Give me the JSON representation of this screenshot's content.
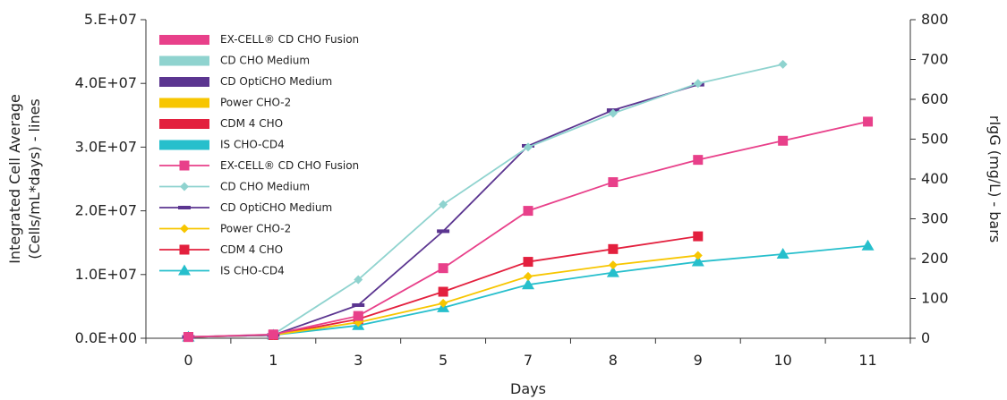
{
  "chart_data": {
    "type": "line",
    "categories": [
      "0",
      "1",
      "3",
      "5",
      "7",
      "8",
      "9",
      "10",
      "11"
    ],
    "xlabel": "Days",
    "ylabel_left_line1": "Integrated Cell Average",
    "ylabel_left_line2": "(Cells/mL*days) - lines",
    "ylabel_right": "rIgG (mg/L) - bars",
    "ylim_left": [
      0,
      50000000
    ],
    "ylim_right": [
      0,
      800
    ],
    "yticks_left": [
      "0.0E+00",
      "1.0E+07",
      "2.0E+07",
      "3.0E+07",
      "4.0E+07",
      "5.E+07"
    ],
    "yticks_right": [
      "0",
      "100",
      "200",
      "300",
      "400",
      "500",
      "600",
      "700",
      "800"
    ],
    "grid": false,
    "legend_position": "top-left",
    "bar_series": [
      {
        "name": "EX-CELL® CD CHO Fusion",
        "color": "#e8408a",
        "values": []
      },
      {
        "name": "CD CHO Medium",
        "color": "#8fd3cf",
        "values": []
      },
      {
        "name": "CD OptiCHO Medium",
        "color": "#5b3590",
        "values": []
      },
      {
        "name": "Power CHO-2",
        "color": "#f7c600",
        "values": []
      },
      {
        "name": "CDM 4 CHO",
        "color": "#e3203e",
        "values": []
      },
      {
        "name": "IS CHO-CD4",
        "color": "#26bfcc",
        "values": []
      }
    ],
    "series": [
      {
        "name": "EX-CELL® CD CHO Fusion",
        "color": "#e8408a",
        "marker": "square",
        "values": [
          200000,
          600000,
          3500000,
          11000000,
          20000000,
          24500000,
          28000000,
          31000000,
          34000000
        ]
      },
      {
        "name": "CD CHO Medium",
        "color": "#8fd3cf",
        "marker": "diamond",
        "values": [
          200000,
          600000,
          9200000,
          21000000,
          30000000,
          35300000,
          40000000,
          43000000,
          null
        ]
      },
      {
        "name": "CD OptiCHO Medium",
        "color": "#5b3590",
        "marker": "dash",
        "values": [
          200000,
          500000,
          5200000,
          16800000,
          30200000,
          35800000,
          39800000,
          null,
          null
        ]
      },
      {
        "name": "Power CHO-2",
        "color": "#f7c600",
        "marker": "diamond",
        "values": [
          200000,
          500000,
          2500000,
          5500000,
          9700000,
          11500000,
          13000000,
          null,
          null
        ]
      },
      {
        "name": "CDM 4 CHO",
        "color": "#e3203e",
        "marker": "square",
        "values": [
          200000,
          500000,
          3000000,
          7300000,
          12000000,
          14000000,
          16000000,
          null,
          null
        ]
      },
      {
        "name": "IS CHO-CD4",
        "color": "#26bfcc",
        "marker": "triangle",
        "values": [
          200000,
          500000,
          2000000,
          4800000,
          8400000,
          10300000,
          12000000,
          13200000,
          14500000
        ]
      }
    ]
  }
}
